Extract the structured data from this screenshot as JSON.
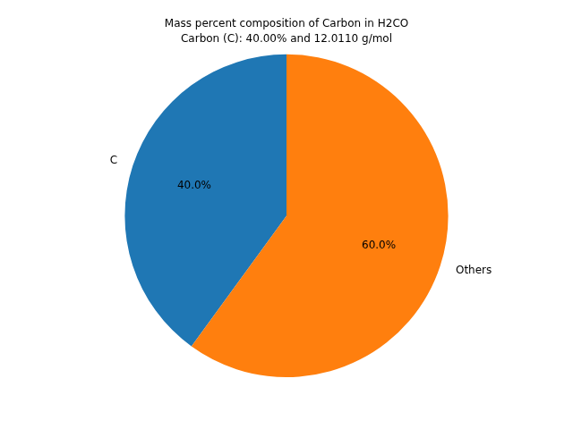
{
  "chart_data": {
    "type": "pie",
    "title": "Mass percent composition of Carbon in H2CO",
    "subtitle": "Carbon (C): 40.00% and 12.0110 g/mol",
    "categories": [
      "C",
      "Others"
    ],
    "values": [
      40,
      60
    ],
    "value_labels": [
      "40.0%",
      "60.0%"
    ],
    "colors": [
      "#1f77b4",
      "#ff7f0e"
    ],
    "data_labels": true
  }
}
